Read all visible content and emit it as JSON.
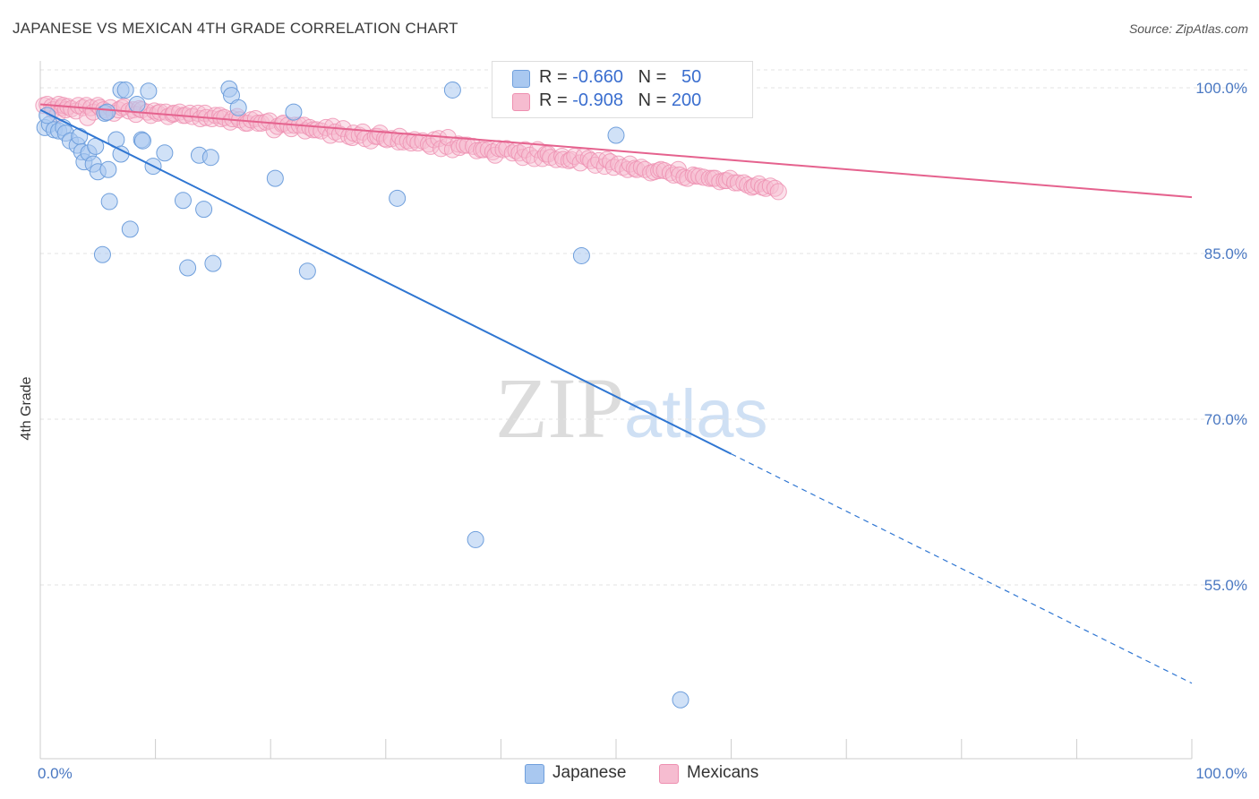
{
  "header": {
    "title": "JAPANESE VS MEXICAN 4TH GRADE CORRELATION CHART",
    "source": "Source: ZipAtlas.com"
  },
  "stats": {
    "japanese": {
      "r_label": "R = ",
      "r": "-0.660",
      "n_label": "N = ",
      "n": "50"
    },
    "mexicans": {
      "r_label": "R = ",
      "r": "-0.908",
      "n_label": "N = ",
      "n": "200"
    }
  },
  "legend": {
    "japanese": "Japanese",
    "mexicans": "Mexicans"
  },
  "watermark": {
    "zip": "ZIP",
    "atlas": "atlas"
  },
  "colors": {
    "japanese_fill": "#a9c8f0",
    "japanese_stroke": "#6f9fdc",
    "japanese_line": "#2f76d2",
    "mexicans_fill": "#f6bcd0",
    "mexicans_stroke": "#ee8fb0",
    "mexicans_line": "#e5628e",
    "tick_text": "#4a78c2",
    "grid": "#e3e3e3"
  },
  "chart_data": {
    "type": "scatter",
    "title": "JAPANESE VS MEXICAN 4TH GRADE CORRELATION CHART",
    "xlabel": "",
    "ylabel": "4th Grade",
    "xlim": [
      0,
      100
    ],
    "ylim": [
      41,
      102
    ],
    "x_ticks": [
      "0.0%",
      "100.0%"
    ],
    "y_ticks": [
      {
        "value": 100,
        "label": "100.0%"
      },
      {
        "value": 85,
        "label": "85.0%"
      },
      {
        "value": 70,
        "label": "70.0%"
      },
      {
        "value": 55,
        "label": "55.0%"
      }
    ],
    "grid": true,
    "legend_position": "bottom-center",
    "series": [
      {
        "name": "Japanese",
        "r": -0.66,
        "n": 50,
        "trend": {
          "x0": 0,
          "y0": 98.0,
          "x_solid_end": 60,
          "x1": 100,
          "y1": 46.1
        },
        "points": [
          [
            0.4,
            96.4
          ],
          [
            0.8,
            96.7
          ],
          [
            0.6,
            97.5
          ],
          [
            1.2,
            96.2
          ],
          [
            1.6,
            96.1
          ],
          [
            2.0,
            96.4
          ],
          [
            2.2,
            95.9
          ],
          [
            2.6,
            95.2
          ],
          [
            3.2,
            94.8
          ],
          [
            3.4,
            95.6
          ],
          [
            3.6,
            94.2
          ],
          [
            3.8,
            93.3
          ],
          [
            4.2,
            94.1
          ],
          [
            4.6,
            93.1
          ],
          [
            4.8,
            94.7
          ],
          [
            5.0,
            92.4
          ],
          [
            5.4,
            84.9
          ],
          [
            5.6,
            97.7
          ],
          [
            5.8,
            97.8
          ],
          [
            5.9,
            92.6
          ],
          [
            6.0,
            89.7
          ],
          [
            6.6,
            95.3
          ],
          [
            7.0,
            94.0
          ],
          [
            7.0,
            99.8
          ],
          [
            7.4,
            99.8
          ],
          [
            7.8,
            87.2
          ],
          [
            8.4,
            98.5
          ],
          [
            8.8,
            95.3
          ],
          [
            8.9,
            95.2
          ],
          [
            9.4,
            99.7
          ],
          [
            9.8,
            92.9
          ],
          [
            10.8,
            94.1
          ],
          [
            12.4,
            89.8
          ],
          [
            12.8,
            83.7
          ],
          [
            13.8,
            93.9
          ],
          [
            14.2,
            89.0
          ],
          [
            14.8,
            93.7
          ],
          [
            15.0,
            84.1
          ],
          [
            16.4,
            99.9
          ],
          [
            16.6,
            99.3
          ],
          [
            17.2,
            98.2
          ],
          [
            20.4,
            91.8
          ],
          [
            22.0,
            97.8
          ],
          [
            23.2,
            83.4
          ],
          [
            31.0,
            90.0
          ],
          [
            35.8,
            99.8
          ],
          [
            37.8,
            59.1
          ],
          [
            47.0,
            84.8
          ],
          [
            55.6,
            44.6
          ],
          [
            50.0,
            95.7
          ]
        ]
      },
      {
        "name": "Mexicans",
        "r": -0.908,
        "n": 200,
        "trend": {
          "x0": 0,
          "y0": 98.5,
          "x1": 100,
          "y1": 90.1
        },
        "points": [
          [
            0.3,
            98.4
          ],
          [
            0.6,
            98.5
          ],
          [
            1.0,
            98.3
          ],
          [
            1.1,
            98.0
          ],
          [
            1.5,
            97.6
          ],
          [
            1.6,
            98.5
          ],
          [
            1.9,
            98.2
          ],
          [
            2.0,
            98.4
          ],
          [
            2.2,
            98.0
          ],
          [
            2.4,
            98.3
          ],
          [
            2.7,
            98.1
          ],
          [
            3.1,
            97.9
          ],
          [
            3.3,
            98.4
          ],
          [
            3.7,
            98.2
          ],
          [
            4.0,
            98.4
          ],
          [
            4.1,
            97.3
          ],
          [
            4.4,
            98.2
          ],
          [
            4.6,
            97.8
          ],
          [
            5.0,
            98.4
          ],
          [
            5.2,
            98.2
          ],
          [
            5.5,
            98.0
          ],
          [
            5.8,
            97.8
          ],
          [
            6.1,
            98.2
          ],
          [
            6.4,
            97.7
          ],
          [
            6.8,
            98.0
          ],
          [
            7.1,
            98.2
          ],
          [
            7.3,
            98.3
          ],
          [
            7.7,
            97.9
          ],
          [
            8.1,
            98.0
          ],
          [
            8.3,
            97.6
          ],
          [
            8.6,
            98.1
          ],
          [
            8.8,
            98.0
          ],
          [
            9.3,
            97.8
          ],
          [
            9.6,
            97.5
          ],
          [
            9.9,
            97.9
          ],
          [
            10.2,
            97.7
          ],
          [
            10.4,
            97.8
          ],
          [
            10.9,
            97.8
          ],
          [
            11.1,
            97.4
          ],
          [
            11.5,
            97.6
          ],
          [
            11.6,
            97.7
          ],
          [
            12.1,
            97.8
          ],
          [
            12.4,
            97.5
          ],
          [
            12.6,
            97.5
          ],
          [
            13.0,
            97.7
          ],
          [
            13.2,
            97.4
          ],
          [
            13.7,
            97.7
          ],
          [
            13.9,
            97.2
          ],
          [
            14.3,
            97.7
          ],
          [
            14.4,
            97.3
          ],
          [
            14.9,
            97.2
          ],
          [
            15.2,
            97.5
          ],
          [
            15.6,
            97.5
          ],
          [
            15.7,
            97.2
          ],
          [
            16.0,
            97.3
          ],
          [
            16.5,
            96.9
          ],
          [
            16.7,
            97.2
          ],
          [
            17.1,
            97.4
          ],
          [
            17.3,
            97.1
          ],
          [
            17.8,
            96.8
          ],
          [
            18.0,
            96.8
          ],
          [
            18.3,
            97.1
          ],
          [
            18.7,
            97.2
          ],
          [
            18.9,
            96.8
          ],
          [
            19.2,
            96.8
          ],
          [
            19.6,
            96.9
          ],
          [
            19.9,
            97.0
          ],
          [
            20.3,
            96.2
          ],
          [
            20.6,
            96.5
          ],
          [
            21.0,
            96.7
          ],
          [
            21.1,
            96.8
          ],
          [
            21.5,
            96.6
          ],
          [
            21.8,
            96.3
          ],
          [
            22.1,
            96.6
          ],
          [
            22.5,
            96.6
          ],
          [
            22.9,
            96.6
          ],
          [
            23.0,
            96.1
          ],
          [
            23.4,
            96.4
          ],
          [
            23.7,
            96.2
          ],
          [
            24.0,
            96.2
          ],
          [
            24.4,
            96.1
          ],
          [
            24.8,
            96.4
          ],
          [
            25.2,
            95.7
          ],
          [
            25.4,
            96.5
          ],
          [
            25.6,
            96.0
          ],
          [
            26.0,
            95.8
          ],
          [
            26.3,
            96.3
          ],
          [
            26.8,
            95.6
          ],
          [
            27.1,
            95.5
          ],
          [
            27.2,
            95.9
          ],
          [
            27.7,
            95.7
          ],
          [
            28.0,
            96.0
          ],
          [
            28.2,
            95.4
          ],
          [
            28.7,
            95.2
          ],
          [
            29.1,
            95.6
          ],
          [
            29.3,
            95.6
          ],
          [
            29.5,
            95.9
          ],
          [
            29.9,
            95.4
          ],
          [
            30.1,
            95.3
          ],
          [
            30.5,
            95.4
          ],
          [
            31.1,
            95.1
          ],
          [
            31.2,
            95.6
          ],
          [
            31.5,
            95.1
          ],
          [
            31.9,
            95.2
          ],
          [
            32.2,
            95.0
          ],
          [
            32.5,
            95.3
          ],
          [
            32.8,
            95.0
          ],
          [
            33.2,
            95.2
          ],
          [
            33.7,
            94.9
          ],
          [
            33.9,
            94.7
          ],
          [
            34.2,
            95.3
          ],
          [
            34.6,
            95.4
          ],
          [
            34.8,
            94.5
          ],
          [
            35.3,
            94.7
          ],
          [
            35.4,
            95.5
          ],
          [
            35.8,
            94.4
          ],
          [
            36.3,
            94.9
          ],
          [
            36.4,
            94.6
          ],
          [
            36.8,
            94.8
          ],
          [
            37.1,
            94.8
          ],
          [
            37.6,
            94.7
          ],
          [
            37.9,
            94.3
          ],
          [
            38.3,
            94.4
          ],
          [
            38.5,
            94.4
          ],
          [
            38.9,
            94.4
          ],
          [
            39.3,
            94.2
          ],
          [
            39.5,
            93.9
          ],
          [
            39.8,
            94.5
          ],
          [
            40.2,
            94.4
          ],
          [
            40.5,
            94.5
          ],
          [
            41.0,
            94.1
          ],
          [
            41.3,
            94.3
          ],
          [
            41.6,
            94.1
          ],
          [
            41.9,
            93.7
          ],
          [
            42.1,
            94.4
          ],
          [
            42.5,
            93.9
          ],
          [
            42.9,
            93.6
          ],
          [
            43.2,
            94.4
          ],
          [
            43.6,
            93.6
          ],
          [
            43.9,
            94.0
          ],
          [
            44.1,
            94.0
          ],
          [
            44.3,
            93.7
          ],
          [
            44.8,
            93.5
          ],
          [
            45.3,
            93.8
          ],
          [
            45.4,
            93.5
          ],
          [
            45.9,
            93.4
          ],
          [
            46.1,
            93.5
          ],
          [
            46.4,
            93.8
          ],
          [
            46.9,
            93.2
          ],
          [
            47.2,
            93.8
          ],
          [
            47.6,
            93.6
          ],
          [
            47.8,
            93.4
          ],
          [
            48.2,
            93.0
          ],
          [
            48.5,
            93.4
          ],
          [
            49.0,
            92.9
          ],
          [
            49.2,
            93.5
          ],
          [
            49.5,
            93.3
          ],
          [
            49.8,
            92.8
          ],
          [
            50.2,
            93.1
          ],
          [
            50.6,
            92.8
          ],
          [
            51.0,
            92.6
          ],
          [
            51.2,
            93.1
          ],
          [
            51.6,
            92.7
          ],
          [
            51.8,
            92.6
          ],
          [
            52.2,
            92.8
          ],
          [
            52.5,
            92.6
          ],
          [
            53.0,
            92.3
          ],
          [
            53.3,
            92.4
          ],
          [
            53.7,
            92.5
          ],
          [
            53.9,
            92.6
          ],
          [
            54.2,
            92.5
          ],
          [
            54.7,
            92.3
          ],
          [
            55.0,
            92.1
          ],
          [
            55.4,
            92.6
          ],
          [
            55.5,
            92.1
          ],
          [
            55.9,
            91.9
          ],
          [
            56.2,
            91.8
          ],
          [
            56.7,
            92.1
          ],
          [
            56.9,
            92.0
          ],
          [
            57.2,
            92.0
          ],
          [
            57.6,
            91.9
          ],
          [
            58.1,
            91.8
          ],
          [
            58.4,
            91.8
          ],
          [
            58.6,
            91.8
          ],
          [
            59.0,
            91.5
          ],
          [
            59.4,
            91.6
          ],
          [
            59.6,
            91.6
          ],
          [
            59.9,
            91.8
          ],
          [
            60.3,
            91.4
          ],
          [
            60.6,
            91.4
          ],
          [
            61.1,
            91.4
          ],
          [
            61.4,
            91.2
          ],
          [
            61.8,
            91.0
          ],
          [
            62.0,
            91.1
          ],
          [
            62.4,
            91.3
          ],
          [
            62.7,
            91.0
          ],
          [
            63.0,
            90.9
          ],
          [
            63.4,
            91.1
          ],
          [
            63.8,
            90.9
          ],
          [
            64.1,
            90.6
          ]
        ]
      }
    ]
  }
}
